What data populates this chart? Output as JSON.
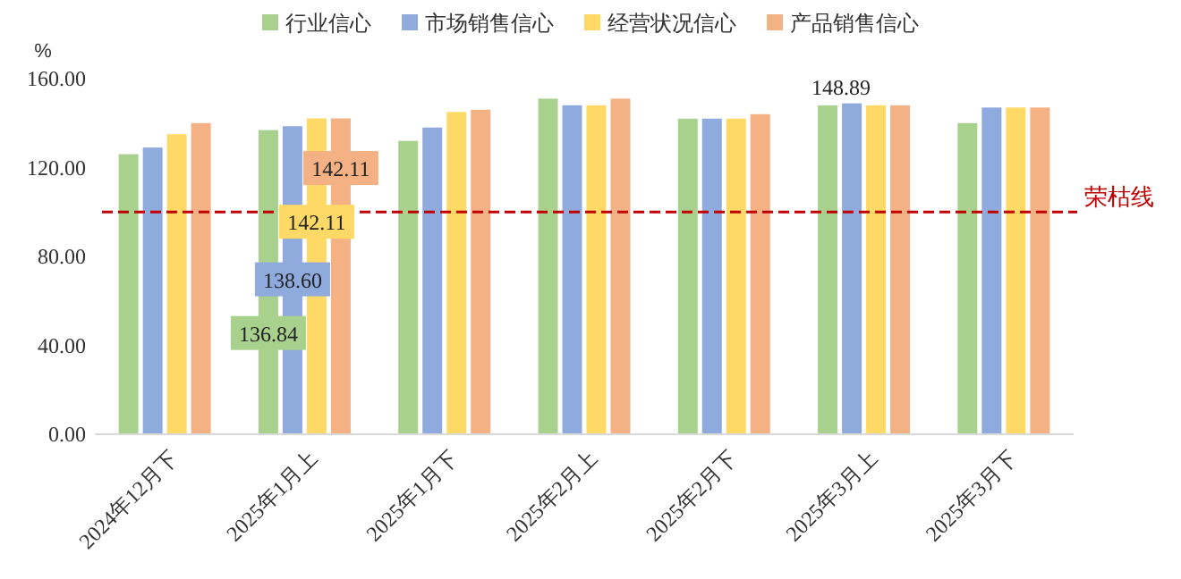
{
  "chart_data": {
    "type": "bar",
    "ylabel": "%",
    "categories": [
      "2024年12月下",
      "2025年1月上",
      "2025年1月下",
      "2025年2月上",
      "2025年2月下",
      "2025年3月上",
      "2025年3月下"
    ],
    "series": [
      {
        "name": "行业信心",
        "color": "#a9d18e",
        "values": [
          126,
          136.84,
          132,
          151,
          142,
          148,
          140
        ],
        "value_labels": [
          null,
          "136.84",
          null,
          null,
          null,
          null,
          null
        ]
      },
      {
        "name": "市场销售信心",
        "color": "#8faadc",
        "values": [
          129,
          138.6,
          138,
          148,
          142,
          148.89,
          147
        ],
        "value_labels": [
          null,
          "138.60",
          null,
          null,
          null,
          "148.89",
          null
        ]
      },
      {
        "name": "经营状况信心",
        "color": "#ffd966",
        "values": [
          135,
          142.11,
          145,
          148,
          142,
          148,
          147
        ],
        "value_labels": [
          null,
          "142.11",
          null,
          null,
          null,
          null,
          null
        ]
      },
      {
        "name": "产品销售信心",
        "color": "#f4b183",
        "values": [
          140,
          142.11,
          146,
          151,
          144,
          148,
          147
        ],
        "value_labels": [
          null,
          "142.11",
          null,
          null,
          null,
          null,
          null
        ]
      }
    ],
    "ylim": [
      0,
      160
    ],
    "yticks": [
      {
        "value": 0,
        "label": "0.00"
      },
      {
        "value": 40,
        "label": "40.00"
      },
      {
        "value": 80,
        "label": "80.00"
      },
      {
        "value": 120,
        "label": "120.00"
      },
      {
        "value": 160,
        "label": "160.00"
      }
    ],
    "ref_lines": [
      {
        "axis": "y",
        "value": 100,
        "label": "荣枯线",
        "color": "#c00000",
        "line_style": "dashed"
      }
    ],
    "grid": false,
    "legend": "top"
  }
}
